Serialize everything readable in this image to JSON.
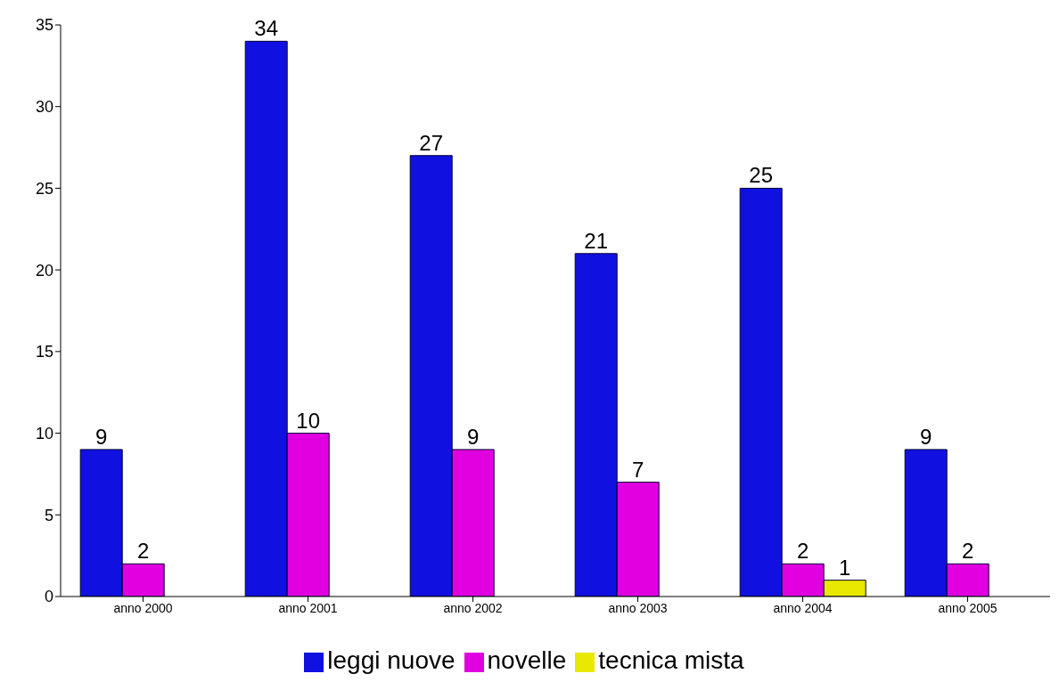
{
  "chart_data": {
    "type": "bar",
    "categories": [
      "anno 2000",
      "anno 2001",
      "anno 2002",
      "anno 2003",
      "anno 2004",
      "anno 2005"
    ],
    "series": [
      {
        "name": "leggi nuove",
        "color": "#1010e0",
        "values": [
          9,
          34,
          27,
          21,
          25,
          9
        ]
      },
      {
        "name": "novelle",
        "color": "#e000e0",
        "values": [
          2,
          10,
          9,
          7,
          2,
          2
        ]
      },
      {
        "name": "tecnica mista",
        "color": "#e8e800",
        "values": [
          null,
          null,
          null,
          null,
          1,
          null
        ]
      }
    ],
    "ylim": [
      0,
      35
    ],
    "yticks": [
      0,
      5,
      10,
      15,
      20,
      25,
      30,
      35
    ],
    "grid": false,
    "legend": "bottom",
    "data_labels": true
  }
}
